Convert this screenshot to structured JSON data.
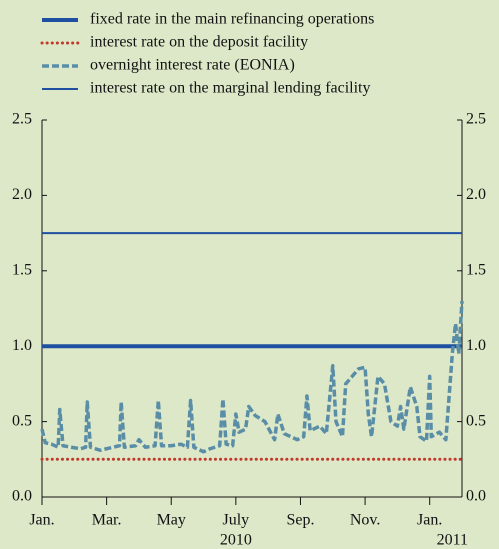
{
  "chart_data": {
    "type": "line",
    "series": [
      {
        "name": "fixed rate in the main refinancing operations",
        "color": "#1f4fa0",
        "style": "thick",
        "x": [
          0,
          13
        ],
        "values": [
          1.0,
          1.0
        ]
      },
      {
        "name": "interest rate on the deposit facility",
        "color": "#c0392b",
        "style": "dotted",
        "x": [
          0,
          13
        ],
        "values": [
          0.25,
          0.25
        ]
      },
      {
        "name": "overnight interest rate (EONIA)",
        "color": "#5a8ea6",
        "style": "dashed",
        "x": [
          0,
          0.1,
          0.3,
          0.5,
          0.55,
          0.65,
          0.9,
          1.2,
          1.35,
          1.4,
          1.5,
          1.8,
          2.2,
          2.4,
          2.45,
          2.55,
          2.9,
          3.0,
          3.2,
          3.5,
          3.6,
          3.7,
          4.0,
          4.3,
          4.5,
          4.6,
          4.7,
          5.0,
          5.2,
          5.5,
          5.6,
          5.7,
          5.9,
          6.0,
          6.1,
          6.3,
          6.4,
          6.6,
          6.9,
          7.1,
          7.2,
          7.3,
          7.5,
          7.9,
          8.1,
          8.2,
          8.3,
          8.6,
          8.8,
          9.0,
          9.1,
          9.3,
          9.4,
          9.6,
          9.8,
          10.0,
          10.1,
          10.2,
          10.4,
          10.6,
          10.8,
          11.0,
          11.1,
          11.2,
          11.4,
          11.6,
          11.7,
          11.9,
          12.0,
          12.05,
          12.3,
          12.5,
          12.7,
          12.8,
          12.9,
          13.0
        ],
        "values": [
          0.45,
          0.36,
          0.35,
          0.33,
          0.58,
          0.34,
          0.33,
          0.32,
          0.33,
          0.63,
          0.33,
          0.31,
          0.33,
          0.34,
          0.63,
          0.33,
          0.34,
          0.38,
          0.33,
          0.34,
          0.64,
          0.34,
          0.34,
          0.35,
          0.33,
          0.64,
          0.33,
          0.3,
          0.32,
          0.34,
          0.65,
          0.35,
          0.34,
          0.55,
          0.43,
          0.45,
          0.6,
          0.54,
          0.5,
          0.42,
          0.38,
          0.55,
          0.42,
          0.38,
          0.4,
          0.67,
          0.44,
          0.47,
          0.42,
          0.87,
          0.5,
          0.4,
          0.75,
          0.8,
          0.85,
          0.86,
          0.55,
          0.4,
          0.8,
          0.75,
          0.5,
          0.47,
          0.6,
          0.45,
          0.73,
          0.6,
          0.4,
          0.37,
          0.8,
          0.4,
          0.43,
          0.38,
          0.95,
          1.15,
          0.95,
          1.3
        ]
      },
      {
        "name": "interest rate on the marginal lending facility",
        "color": "#1f4fa0",
        "style": "solid",
        "x": [
          0,
          13
        ],
        "values": [
          1.75,
          1.75
        ]
      }
    ],
    "xlim": [
      0,
      13
    ],
    "xticks": [
      {
        "value": 0,
        "label": "Jan."
      },
      {
        "value": 2,
        "label": "Mar."
      },
      {
        "value": 4,
        "label": "May"
      },
      {
        "value": 6,
        "label": "July"
      },
      {
        "value": 8,
        "label": "Sep."
      },
      {
        "value": 10,
        "label": "Nov."
      },
      {
        "value": 12,
        "label": "Jan."
      }
    ],
    "year_labels": [
      {
        "value": 6,
        "label": "2010"
      },
      {
        "value": 12.7,
        "label": "2011"
      }
    ],
    "ylim": [
      0,
      2.5
    ],
    "yticks": [
      {
        "value": 0,
        "label": "0.0"
      },
      {
        "value": 0.5,
        "label": "0.5"
      },
      {
        "value": 1.0,
        "label": "1.0"
      },
      {
        "value": 1.5,
        "label": "1.5"
      },
      {
        "value": 2.0,
        "label": "2.0"
      },
      {
        "value": 2.5,
        "label": "2.5"
      }
    ]
  }
}
